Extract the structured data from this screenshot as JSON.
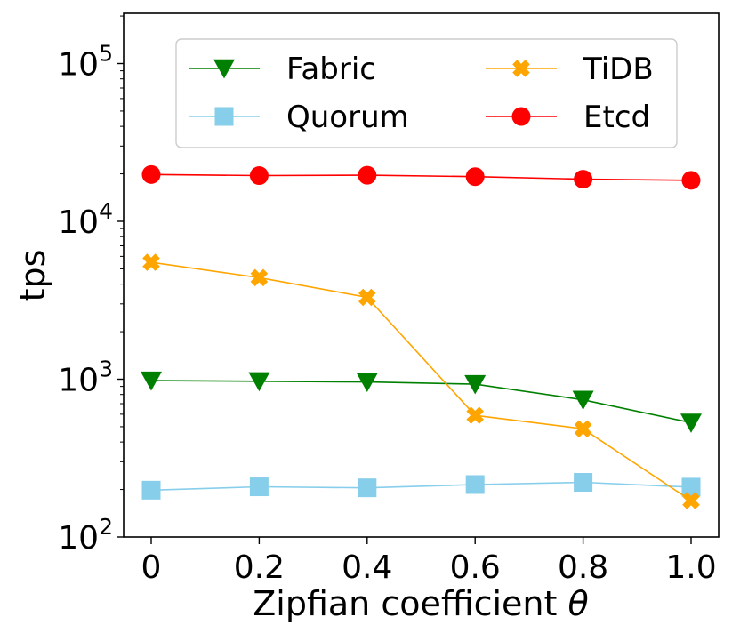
{
  "chart_data": {
    "type": "line",
    "title": "",
    "xlabel": "Zipfian coefficient θ",
    "ylabel": "tps",
    "yscale": "log",
    "ylim": [
      100,
      200000
    ],
    "xlim": [
      -0.06,
      1.06
    ],
    "x": [
      0,
      0.2,
      0.4,
      0.6,
      0.8,
      1.0
    ],
    "x_tick_labels": [
      "0",
      "0.2",
      "0.4",
      "0.6",
      "0.8",
      "1.0"
    ],
    "y_ticks": [
      {
        "base": "10",
        "exp": "2",
        "value": 100
      },
      {
        "base": "10",
        "exp": "3",
        "value": 1000
      },
      {
        "base": "10",
        "exp": "4",
        "value": 10000
      },
      {
        "base": "10",
        "exp": "5",
        "value": 100000
      }
    ],
    "legend_position": "upper-center",
    "series": [
      {
        "name": "Fabric",
        "color": "#008000",
        "marker": "triangle-down",
        "values": [
          980,
          970,
          960,
          930,
          740,
          530
        ]
      },
      {
        "name": "Quorum",
        "color": "#87ceeb",
        "marker": "square",
        "values": [
          198,
          208,
          205,
          215,
          222,
          207
        ]
      },
      {
        "name": "TiDB",
        "color": "#ffa500",
        "marker": "x",
        "values": [
          5500,
          4400,
          3300,
          590,
          485,
          170
        ]
      },
      {
        "name": "Etcd",
        "color": "#ff0000",
        "marker": "circle",
        "values": [
          19800,
          19500,
          19600,
          19200,
          18500,
          18200
        ]
      }
    ]
  }
}
